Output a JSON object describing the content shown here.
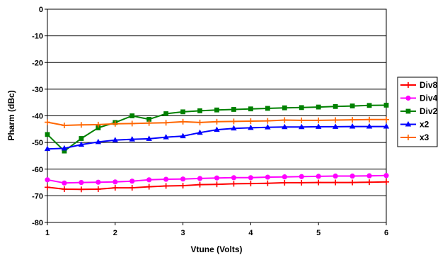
{
  "chart_data": {
    "type": "line",
    "title": "",
    "xlabel": "Vtune (Volts)",
    "ylabel": "Pharm (dBc)",
    "xlim": [
      1,
      6
    ],
    "ylim": [
      -80,
      0
    ],
    "x_ticks": [
      "1",
      "2",
      "3",
      "4",
      "5",
      "6"
    ],
    "y_ticks": [
      "0",
      "-10",
      "-20",
      "-30",
      "-40",
      "-50",
      "-60",
      "-70",
      "-80"
    ],
    "grid": "horizontal",
    "legend_position": "right",
    "x": [
      1,
      1.25,
      1.5,
      1.75,
      2,
      2.25,
      2.5,
      2.75,
      3,
      3.25,
      3.5,
      3.75,
      4,
      4.25,
      4.5,
      4.75,
      5,
      5.25,
      5.5,
      5.75,
      6
    ],
    "series": [
      {
        "name": "Div8",
        "color": "#ff0000",
        "marker": "plus",
        "values": [
          -66.8,
          -67.5,
          -67.6,
          -67.5,
          -67.0,
          -67.0,
          -66.6,
          -66.3,
          -66.2,
          -65.8,
          -65.7,
          -65.5,
          -65.4,
          -65.3,
          -65.1,
          -65.1,
          -65.0,
          -65.0,
          -65.0,
          -64.9,
          -64.8
        ]
      },
      {
        "name": "Div4",
        "color": "#ff00ff",
        "marker": "circle",
        "values": [
          -64.0,
          -65.2,
          -65.0,
          -64.9,
          -64.8,
          -64.5,
          -64.0,
          -63.8,
          -63.7,
          -63.5,
          -63.3,
          -63.2,
          -63.2,
          -63.0,
          -62.9,
          -62.8,
          -62.7,
          -62.6,
          -62.6,
          -62.5,
          -62.4
        ]
      },
      {
        "name": "Div2",
        "color": "#008000",
        "marker": "square",
        "values": [
          -47.0,
          -53.2,
          -48.5,
          -44.5,
          -42.5,
          -40.0,
          -41.3,
          -39.2,
          -38.5,
          -38.1,
          -37.8,
          -37.6,
          -37.4,
          -37.2,
          -37.0,
          -36.9,
          -36.7,
          -36.5,
          -36.3,
          -36.1,
          -36.0
        ]
      },
      {
        "name": "x2",
        "color": "#0000ff",
        "marker": "triangle",
        "values": [
          -52.4,
          -52.2,
          -50.8,
          -49.8,
          -49.1,
          -48.8,
          -48.6,
          -48.0,
          -47.6,
          -46.3,
          -45.2,
          -44.7,
          -44.5,
          -44.3,
          -44.2,
          -44.2,
          -44.1,
          -44.1,
          -44.0,
          -44.0,
          -44.0
        ]
      },
      {
        "name": "x3",
        "color": "#ff6600",
        "marker": "plus",
        "values": [
          -42.4,
          -43.6,
          -43.4,
          -43.3,
          -43.0,
          -42.9,
          -42.7,
          -42.6,
          -42.2,
          -42.5,
          -42.2,
          -42.1,
          -42.0,
          -41.9,
          -41.6,
          -41.7,
          -41.7,
          -41.6,
          -41.5,
          -41.4,
          -41.4
        ]
      }
    ]
  }
}
